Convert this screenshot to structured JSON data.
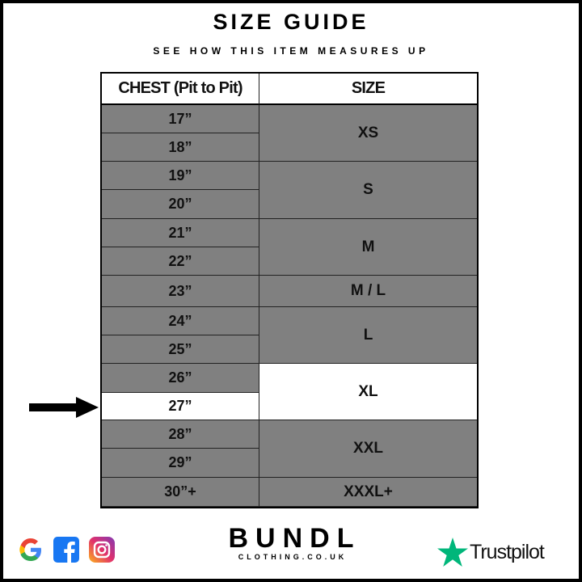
{
  "title": "SIZE GUIDE",
  "subtitle": "SEE HOW THIS ITEM MEASURES UP",
  "table": {
    "headers": [
      "CHEST (Pit to Pit)",
      "SIZE"
    ],
    "chest": [
      "17”",
      "18”",
      "19”",
      "20”",
      "21”",
      "22”",
      "23”",
      "24”",
      "25”",
      "26”",
      "27”",
      "28”",
      "29”",
      "30”+"
    ],
    "sizes": [
      {
        "label": "XS",
        "rows": 2
      },
      {
        "label": "S",
        "rows": 2
      },
      {
        "label": "M",
        "rows": 2
      },
      {
        "label": "M / L",
        "rows": 1
      },
      {
        "label": "L",
        "rows": 2
      },
      {
        "label": "XL",
        "rows": 2
      },
      {
        "label": "XXL",
        "rows": 2
      },
      {
        "label": "XXXL+",
        "rows": 1
      }
    ],
    "highlighted_chest": "27”",
    "highlighted_size": "XL",
    "cell_color": "#808080",
    "highlight_color": "#ffffff"
  },
  "footer": {
    "social_icons": [
      "google-icon",
      "facebook-icon",
      "instagram-icon"
    ],
    "brand": "BUNDL",
    "brand_sub": "CLOTHING.CO.UK",
    "trustpilot": "Trustpilot",
    "trustpilot_color": "#00b67a"
  }
}
